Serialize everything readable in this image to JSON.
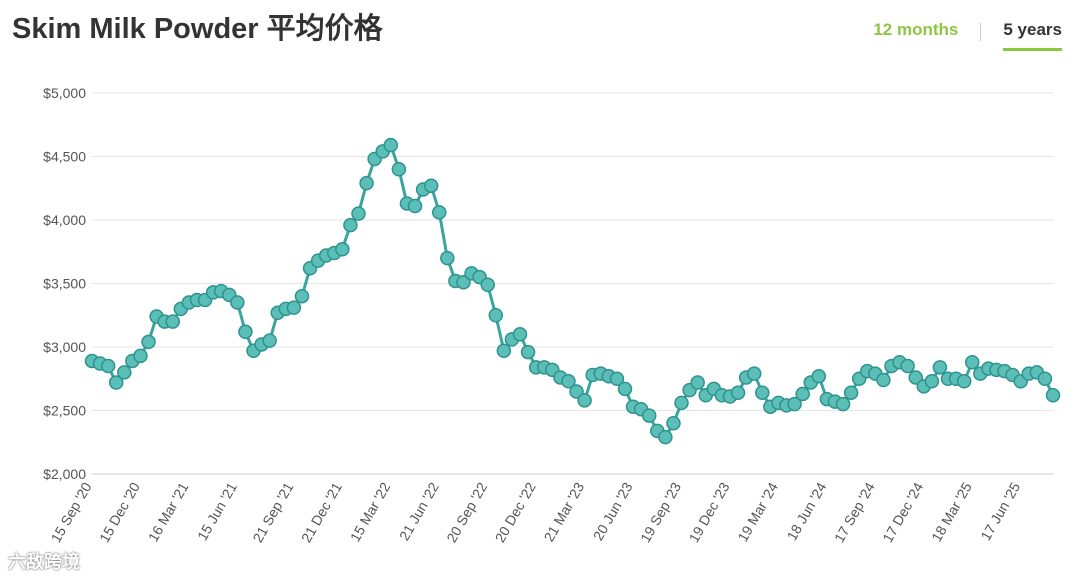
{
  "header": {
    "title": "Skim Milk Powder 平均价格"
  },
  "range_tabs": [
    {
      "label": "12 months",
      "active": false
    },
    {
      "label": "5 years",
      "active": true
    }
  ],
  "colors": {
    "line": "#3aa5a0",
    "marker_fill": "#5bbfb8",
    "marker_stroke": "#2e938e",
    "accent": "#8dc63f",
    "grid": "#e6e6e6",
    "tick_text": "#555555"
  },
  "watermark": "六敌跨境",
  "chart_data": {
    "type": "line",
    "title": "Skim Milk Powder 平均价格",
    "xlabel": "",
    "ylabel": "",
    "ylim": [
      2000,
      5000
    ],
    "yticks": [
      2000,
      2500,
      3000,
      3500,
      4000,
      4500,
      5000
    ],
    "ytick_labels": [
      "$2,000",
      "$2,500",
      "$3,000",
      "$3,500",
      "$4,000",
      "$4,500",
      "$5,000"
    ],
    "grid": true,
    "x_tick_labels": [
      "15 Sep '20",
      "15 Dec '20",
      "16 Mar '21",
      "15 Jun '21",
      "21 Sep '21",
      "21 Dec '21",
      "15 Mar '22",
      "21 Jun '22",
      "20 Sep '22",
      "20 Dec '22",
      "21 Mar '23",
      "20 Jun '23",
      "19 Sep '23",
      "19 Dec '23",
      "19 Mar '24",
      "18 Jun '24",
      "17 Sep '24",
      "17 Dec '24",
      "18 Mar '25",
      "17 Jun '25"
    ],
    "x_tick_index": [
      0,
      6,
      12,
      18,
      25,
      31,
      37,
      43,
      49,
      55,
      61,
      67,
      73,
      79,
      85,
      91,
      97,
      103,
      109,
      115
    ],
    "series": [
      {
        "values": [
          2890,
          2870,
          2850,
          2720,
          2800,
          2890,
          2930,
          3040,
          3240,
          3200,
          3200,
          3300,
          3350,
          3370,
          3370,
          3430,
          3440,
          3410,
          3350,
          3120,
          2970,
          3020,
          3050,
          3270,
          3300,
          3310,
          3400,
          3620,
          3680,
          3720,
          3740,
          3770,
          3960,
          4050,
          4290,
          4480,
          4540,
          4590,
          4400,
          4130,
          4110,
          4240,
          4270,
          4060,
          3700,
          3520,
          3510,
          3580,
          3550,
          3490,
          3250,
          2970,
          3060,
          3100,
          2960,
          2840,
          2840,
          2820,
          2760,
          2730,
          2650,
          2580,
          2780,
          2790,
          2770,
          2750,
          2670,
          2530,
          2510,
          2460,
          2340,
          2290,
          2400,
          2560,
          2660,
          2720,
          2620,
          2670,
          2620,
          2610,
          2640,
          2760,
          2790,
          2640,
          2530,
          2560,
          2540,
          2550,
          2630,
          2720,
          2770,
          2590,
          2570,
          2550,
          2640,
          2750,
          2810,
          2790,
          2740,
          2850,
          2880,
          2850,
          2760,
          2690,
          2730,
          2840,
          2750,
          2750,
          2730,
          2880,
          2790,
          2830,
          2820,
          2810,
          2780,
          2730,
          2790,
          2800,
          2750,
          2620
        ]
      }
    ]
  }
}
